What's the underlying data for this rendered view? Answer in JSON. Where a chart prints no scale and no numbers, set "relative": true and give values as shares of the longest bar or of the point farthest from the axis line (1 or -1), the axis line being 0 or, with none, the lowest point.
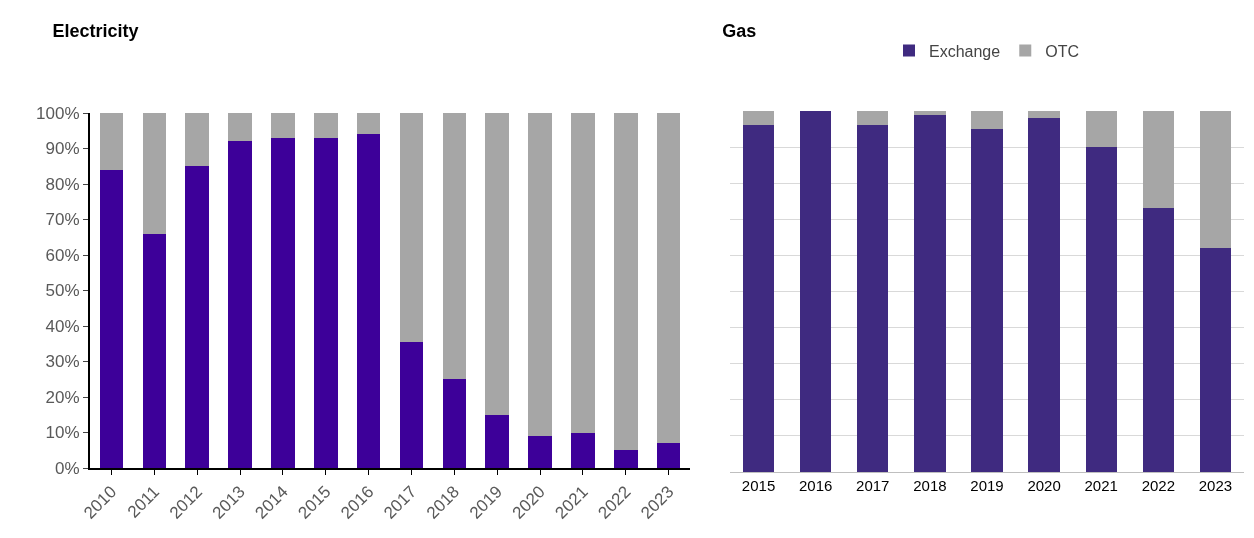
{
  "chart_data": [
    {
      "type": "bar",
      "title": "Electricity",
      "stacked": true,
      "categories": [
        "2010",
        "2011",
        "2012",
        "2013",
        "2014",
        "2015",
        "2016",
        "2017",
        "2018",
        "2019",
        "2020",
        "2021",
        "2022",
        "2023"
      ],
      "series": [
        {
          "color": "#3d0099",
          "values": [
            84,
            66,
            85,
            92,
            93,
            93,
            94,
            35.5,
            25,
            15,
            9,
            10,
            5,
            7
          ]
        },
        {
          "color": "#a6a6a6",
          "values": [
            16,
            34,
            15,
            8,
            7,
            7,
            6,
            64.5,
            75,
            85,
            91,
            90,
            95,
            93
          ]
        }
      ],
      "ylim": [
        0,
        100
      ],
      "yticks": [
        {
          "value": 0,
          "label": "0%"
        },
        {
          "value": 10,
          "label": "10%"
        },
        {
          "value": 20,
          "label": "20%"
        },
        {
          "value": 30,
          "label": "30%"
        },
        {
          "value": 40,
          "label": "40%"
        },
        {
          "value": 50,
          "label": "50%"
        },
        {
          "value": 60,
          "label": "60%"
        },
        {
          "value": 70,
          "label": "70%"
        },
        {
          "value": 80,
          "label": "80%"
        },
        {
          "value": 90,
          "label": "90%"
        },
        {
          "value": 100,
          "label": "100%"
        }
      ],
      "grid": false,
      "legend": false
    },
    {
      "type": "bar",
      "title": "Gas",
      "stacked": true,
      "relative": true,
      "categories": [
        "2015",
        "2016",
        "2017",
        "2018",
        "2019",
        "2020",
        "2021",
        "2022",
        "2023"
      ],
      "series": [
        {
          "name": "Exchange",
          "color": "#3f2a80",
          "values": [
            0.96,
            1.0,
            0.96,
            0.99,
            0.95,
            0.98,
            0.9,
            0.73,
            0.62
          ]
        },
        {
          "name": "OTC",
          "color": "#a6a6a6",
          "values": [
            0.04,
            0,
            0.04,
            0.01,
            0.05,
            0.02,
            0.1,
            0.27,
            0.38
          ]
        }
      ],
      "grid": "y",
      "legend": "top"
    }
  ]
}
